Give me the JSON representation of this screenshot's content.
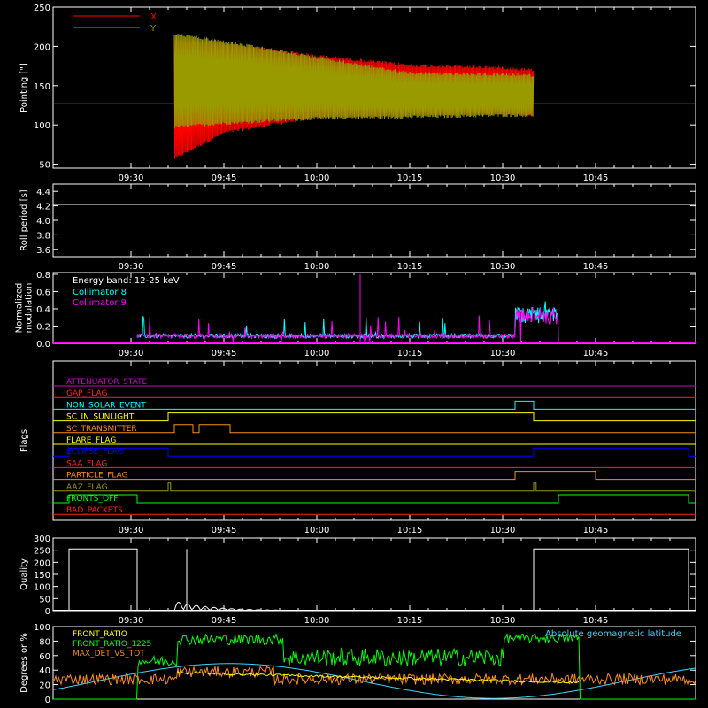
{
  "chart_data": [
    {
      "type": "line",
      "panel": "pointing",
      "ylabel": "Pointing [\"]",
      "ylim": [
        45,
        250
      ],
      "yticks": [
        50,
        100,
        150,
        200,
        250
      ],
      "xticks": [
        "09:30",
        "09:45",
        "10:00",
        "10:15",
        "10:30",
        "10:45"
      ],
      "legend": [
        {
          "name": "X",
          "color": "#ff0000"
        },
        {
          "name": "Y",
          "color": "#999900"
        }
      ],
      "series": [
        {
          "name": "X",
          "color": "#ff0000",
          "baseline": 127,
          "start": "09:37",
          "envelope_x": [
            "09:37",
            "09:45",
            "10:00",
            "10:15",
            "10:30",
            "10:35"
          ],
          "upper": [
            212,
            205,
            190,
            178,
            175,
            172
          ],
          "lower": [
            55,
            88,
            108,
            112,
            112,
            110
          ]
        },
        {
          "name": "Y",
          "color": "#999900",
          "baseline": 127,
          "start": "09:37",
          "envelope_x": [
            "09:37",
            "09:45",
            "10:00",
            "10:15",
            "10:30",
            "10:35"
          ],
          "upper": [
            218,
            208,
            188,
            168,
            166,
            165
          ],
          "lower": [
            95,
            100,
            106,
            108,
            110,
            110
          ]
        }
      ]
    },
    {
      "type": "line",
      "panel": "roll",
      "ylabel": "Roll period [s]",
      "ylim": [
        3.5,
        4.5
      ],
      "yticks": [
        "3.6",
        "3.8",
        "4.0",
        "4.2",
        "4.4"
      ],
      "xticks": [
        "09:30",
        "09:45",
        "10:00",
        "10:15",
        "10:30",
        "10:45"
      ],
      "series": [
        {
          "name": "roll",
          "color": "#ffffff",
          "value": 4.22
        }
      ]
    },
    {
      "type": "line",
      "panel": "modulation",
      "ylabel": "Normalized modulation",
      "ylim": [
        0,
        0.82
      ],
      "yticks": [
        "0.0",
        "0.2",
        "0.4",
        "0.6",
        "0.8"
      ],
      "xticks": [
        "09:30",
        "09:45",
        "10:00",
        "10:15",
        "10:30",
        "10:45"
      ],
      "annotation": "Energy band: 12-25 keV",
      "series": [
        {
          "name": "Collimator 8",
          "color": "#00ffff"
        },
        {
          "name": "Collimator 9",
          "color": "#ff00ff"
        }
      ]
    },
    {
      "type": "line",
      "panel": "flags",
      "ylabel": "Flags",
      "xticks": [
        "09:30",
        "09:45",
        "10:00",
        "10:15",
        "10:30",
        "10:45"
      ],
      "flags": [
        {
          "name": "ATTENUATOR_STATE",
          "color": "#cc00cc",
          "on": []
        },
        {
          "name": "SAA_FLAG_TOP",
          "label": "GAP_FLAG",
          "color": "#ff2020",
          "on": []
        },
        {
          "name": "NON_SOLAR_EVENT",
          "color": "#00ffff",
          "on": [
            [
              "10:32",
              "10:35"
            ]
          ]
        },
        {
          "name": "SC_IN_SUNLIGHT",
          "color": "#ffff00",
          "on": [
            [
              "09:36",
              "10:35"
            ]
          ]
        },
        {
          "name": "SC_TRANSMITTER",
          "color": "#ff8c1a",
          "on": [
            [
              "09:37",
              "09:40"
            ],
            [
              "09:41",
              "09:46"
            ]
          ]
        },
        {
          "name": "FLARE_FLAG",
          "color": "#ffff00",
          "on": []
        },
        {
          "name": "ECLIPSE_FLAG",
          "color": "#0000ff",
          "on": [
            [
              "09:20",
              "09:36"
            ],
            [
              "10:35",
              "11:00"
            ]
          ]
        },
        {
          "name": "SAA_FLAG",
          "color": "#ff2020",
          "on": []
        },
        {
          "name": "PARTICLE_FLAG",
          "color": "#ff8c1a",
          "on": [
            [
              "10:32",
              "10:45"
            ]
          ]
        },
        {
          "name": "AAZ_FLAG",
          "color": "#999900",
          "on": [
            [
              "09:36",
              "09:36.4"
            ],
            [
              "10:35",
              "10:35.4"
            ]
          ]
        },
        {
          "name": "FRONTS_OFF",
          "color": "#00ff00",
          "on": [
            [
              "09:20",
              "09:31"
            ],
            [
              "10:39",
              "11:00"
            ]
          ]
        },
        {
          "name": "BAD_PACKETS",
          "color": "#ff2020",
          "on": []
        }
      ]
    },
    {
      "type": "line",
      "panel": "quality",
      "ylabel": "Quality",
      "ylim": [
        0,
        300
      ],
      "yticks": [
        0,
        50,
        100,
        150,
        200,
        250,
        300
      ],
      "xticks": [
        "09:30",
        "09:45",
        "10:00",
        "10:15",
        "10:30",
        "10:45"
      ],
      "series": [
        {
          "name": "quality",
          "color": "#ffffff",
          "segments": [
            {
              "from": "09:20",
              "to": "09:31",
              "value": 255
            },
            {
              "from": "10:35",
              "to": "11:00",
              "value": 255
            }
          ],
          "spikes": [
            {
              "at": "09:39",
              "value": 255
            }
          ],
          "decay_start": "09:37",
          "decay_end": "09:59"
        }
      ]
    },
    {
      "type": "line",
      "panel": "geometry",
      "ylabel": "Degrees or %",
      "ylim": [
        0,
        100
      ],
      "yticks": [
        0,
        20,
        40,
        60,
        80,
        100
      ],
      "legend_title": "Absolute geomagnetic latitude",
      "series": [
        {
          "name": "FRONT_RATIO",
          "color": "#ffff00"
        },
        {
          "name": "FRONT_RATIO_1225",
          "color": "#00ff00"
        },
        {
          "name": "MAX_DET_VS_TOT",
          "color": "#ff8c1a"
        },
        {
          "name": "Absolute geomagnetic latitude",
          "color": "#40d0ff"
        }
      ]
    }
  ],
  "colors": {
    "axes": "#ffffff",
    "background": "#000000"
  }
}
